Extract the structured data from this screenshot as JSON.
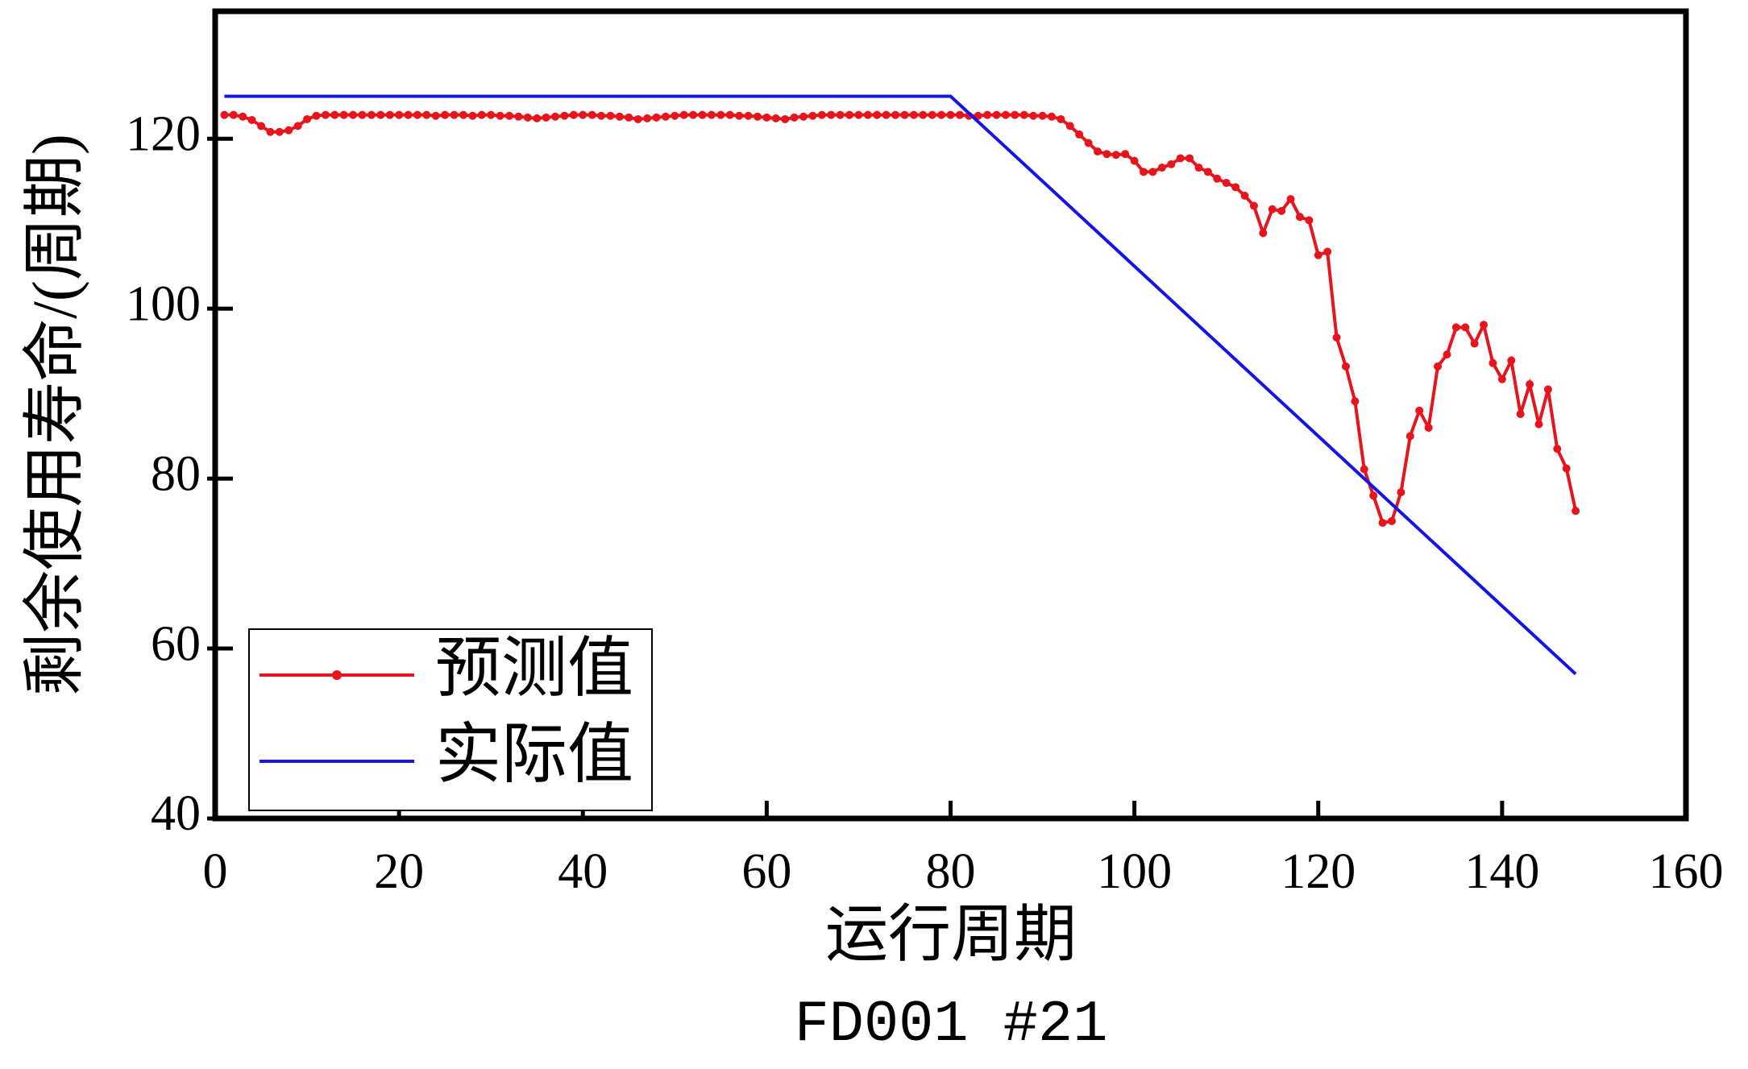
{
  "chart_data": {
    "type": "line",
    "subtitle": "FD001 #21",
    "xlabel": "运行周期",
    "ylabel": "剩余使用寿命/(周期)",
    "xlim": [
      0,
      160
    ],
    "ylim": [
      40,
      135
    ],
    "xticks": [
      0,
      20,
      40,
      60,
      80,
      100,
      120,
      140,
      160
    ],
    "yticks": [
      40,
      60,
      80,
      100,
      120
    ],
    "legend": "lower left",
    "series": [
      {
        "name": "预测值",
        "color": "#e8141c",
        "marker": true,
        "x": [
          1,
          2,
          3,
          4,
          5,
          6,
          7,
          8,
          9,
          10,
          11,
          12,
          13,
          14,
          15,
          16,
          17,
          18,
          19,
          20,
          21,
          22,
          23,
          24,
          25,
          26,
          27,
          28,
          29,
          30,
          31,
          32,
          33,
          34,
          35,
          36,
          37,
          38,
          39,
          40,
          41,
          42,
          43,
          44,
          45,
          46,
          47,
          48,
          49,
          50,
          51,
          52,
          53,
          54,
          55,
          56,
          57,
          58,
          59,
          60,
          61,
          62,
          63,
          64,
          65,
          66,
          67,
          68,
          69,
          70,
          71,
          72,
          73,
          74,
          75,
          76,
          77,
          78,
          79,
          80,
          81,
          82,
          83,
          84,
          85,
          86,
          87,
          88,
          89,
          90,
          91,
          92,
          93,
          94,
          95,
          96,
          97,
          98,
          99,
          100,
          101,
          102,
          103,
          104,
          105,
          106,
          107,
          108,
          109,
          110,
          111,
          112,
          113,
          114,
          115,
          116,
          117,
          118,
          119,
          120,
          121,
          122,
          123,
          124,
          125,
          126,
          127,
          128,
          129,
          130,
          131,
          132,
          133,
          134,
          135,
          136,
          137,
          138,
          139,
          140,
          141,
          142,
          143,
          144,
          145,
          146,
          147,
          148
        ],
        "values": [
          122.8,
          122.8,
          122.6,
          122.2,
          121.5,
          120.8,
          120.8,
          121.0,
          121.5,
          122.3,
          122.7,
          122.8,
          122.8,
          122.8,
          122.8,
          122.8,
          122.8,
          122.8,
          122.8,
          122.8,
          122.8,
          122.8,
          122.8,
          122.7,
          122.8,
          122.8,
          122.8,
          122.7,
          122.8,
          122.8,
          122.7,
          122.7,
          122.6,
          122.5,
          122.4,
          122.5,
          122.6,
          122.7,
          122.8,
          122.8,
          122.8,
          122.7,
          122.7,
          122.6,
          122.5,
          122.3,
          122.4,
          122.5,
          122.6,
          122.7,
          122.8,
          122.8,
          122.8,
          122.8,
          122.8,
          122.8,
          122.7,
          122.7,
          122.6,
          122.5,
          122.4,
          122.3,
          122.5,
          122.6,
          122.7,
          122.8,
          122.8,
          122.8,
          122.8,
          122.8,
          122.8,
          122.8,
          122.8,
          122.8,
          122.8,
          122.8,
          122.8,
          122.8,
          122.8,
          122.8,
          122.8,
          122.7,
          122.7,
          122.8,
          122.8,
          122.8,
          122.8,
          122.8,
          122.7,
          122.7,
          122.6,
          122.3,
          121.5,
          120.5,
          119.5,
          118.5,
          118.2,
          118.1,
          118.2,
          117.4,
          116.1,
          116.1,
          116.6,
          117.0,
          117.7,
          117.7,
          116.6,
          116.1,
          115.3,
          114.8,
          114.3,
          113.3,
          112.1,
          108.9,
          111.7,
          111.5,
          112.9,
          110.8,
          110.4,
          106.3,
          106.7,
          96.6,
          93.2,
          89.1,
          81.1,
          78.0,
          74.8,
          75.0,
          78.4,
          85.0,
          88.0,
          86.0,
          93.2,
          94.6,
          97.8,
          97.8,
          95.9,
          98.1,
          93.6,
          91.7,
          93.9,
          87.6,
          91.1,
          86.4,
          90.5,
          83.5,
          81.2,
          76.2
        ]
      },
      {
        "name": "实际值",
        "color": "#1414e6",
        "marker": false,
        "x": [
          1,
          80,
          148
        ],
        "values": [
          125,
          125,
          57
        ]
      }
    ]
  }
}
